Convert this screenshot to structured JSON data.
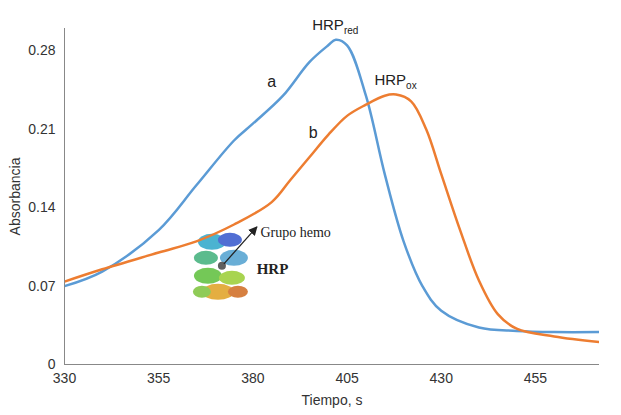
{
  "chart_data": {
    "type": "line",
    "x_label": "Tiempo, s",
    "y_label": "Absorbancia",
    "xlim": [
      330,
      472
    ],
    "xticks": [
      330,
      355,
      380,
      405,
      430,
      455
    ],
    "ylim": [
      0,
      0.3
    ],
    "yticks": [
      0,
      0.07,
      0.14,
      0.21,
      0.28
    ],
    "grid": false,
    "series": [
      {
        "name": "HRPred",
        "color": "#5b9bd5",
        "x": [
          330,
          340,
          355,
          365,
          375,
          380,
          388,
          395,
          400,
          402,
          405,
          410,
          415,
          420,
          425,
          430,
          440,
          450,
          460,
          472
        ],
        "values": [
          0.07,
          0.083,
          0.12,
          0.16,
          0.2,
          0.215,
          0.24,
          0.27,
          0.285,
          0.29,
          0.285,
          0.24,
          0.17,
          0.11,
          0.07,
          0.048,
          0.033,
          0.03,
          0.029,
          0.029
        ]
      },
      {
        "name": "HRPox",
        "color": "#ed7d31",
        "x": [
          330,
          340,
          355,
          365,
          375,
          385,
          390,
          395,
          400,
          405,
          410,
          415,
          418,
          422,
          426,
          430,
          435,
          440,
          445,
          450,
          460,
          472
        ],
        "values": [
          0.074,
          0.085,
          0.1,
          0.11,
          0.125,
          0.145,
          0.165,
          0.185,
          0.205,
          0.222,
          0.232,
          0.24,
          0.241,
          0.235,
          0.21,
          0.17,
          0.12,
          0.075,
          0.045,
          0.032,
          0.025,
          0.02
        ]
      }
    ],
    "annotations": [
      {
        "text": "a",
        "x": 385,
        "y": 0.252
      },
      {
        "text": "b",
        "x": 396,
        "y": 0.207
      },
      {
        "text": "Grupo hemo",
        "x": 382,
        "y": 0.118
      },
      {
        "text": "HRP",
        "x": 381,
        "y": 0.085
      }
    ]
  }
}
